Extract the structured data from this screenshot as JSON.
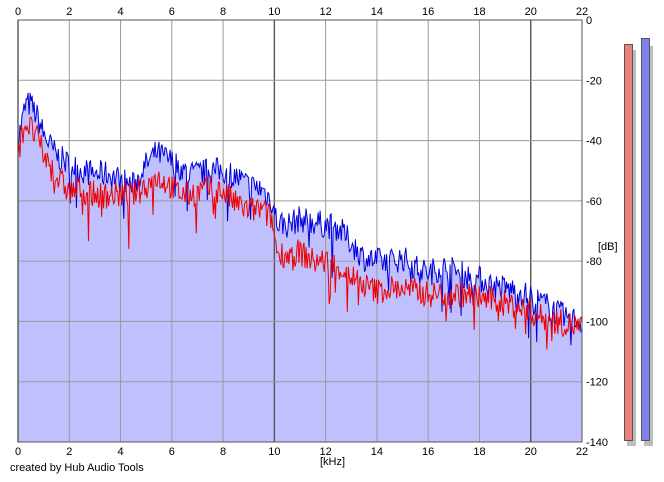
{
  "credit": "created by Hub Audio Tools",
  "chart_data": {
    "type": "area",
    "xlabel": "[kHz]",
    "ylabel": "[dB]",
    "xlim": [
      0,
      22
    ],
    "ylim": [
      -140,
      0
    ],
    "x_ticks": [
      "0",
      "2",
      "4",
      "6",
      "8",
      "10",
      "12",
      "14",
      "16",
      "18",
      "20",
      "22"
    ],
    "y_ticks": [
      "0",
      "-20",
      "-40",
      "-60",
      "-80",
      "-100",
      "-120",
      "-140"
    ],
    "grid": true,
    "colors": {
      "fill": "#c0c0ff",
      "blue": "#0000dd",
      "red": "#ee0000",
      "meter_left": "#f08080",
      "meter_right": "#8080f0"
    },
    "series": [
      {
        "color": "blue",
        "x": [
          0,
          0.3,
          0.5,
          0.8,
          1.0,
          1.5,
          2.0,
          2.5,
          3.0,
          3.5,
          4.0,
          4.5,
          5.0,
          5.4,
          5.8,
          6.2,
          6.6,
          7.0,
          7.5,
          8.0,
          8.5,
          9.0,
          9.5,
          9.9,
          10.1,
          10.5,
          11.0,
          11.5,
          12.0,
          12.5,
          13.0,
          13.5,
          14.0,
          14.5,
          15.0,
          15.5,
          16.0,
          16.5,
          17.0,
          17.5,
          18.0,
          18.5,
          19.0,
          19.5,
          20.0,
          20.5,
          21.0,
          21.5,
          22.0
        ],
        "y": [
          -40,
          -28,
          -28,
          -33,
          -38,
          -45,
          -48,
          -50,
          -51,
          -51,
          -53,
          -55,
          -48,
          -44,
          -46,
          -48,
          -51,
          -51,
          -50,
          -50,
          -52,
          -55,
          -56,
          -60,
          -67,
          -68,
          -66,
          -67,
          -68,
          -69,
          -74,
          -79,
          -80,
          -80,
          -79,
          -82,
          -84,
          -82,
          -83,
          -85,
          -86,
          -88,
          -89,
          -90,
          -92,
          -94,
          -97,
          -99,
          -100
        ]
      },
      {
        "color": "red",
        "x": [
          0,
          0.3,
          0.5,
          0.8,
          1.0,
          1.5,
          2.0,
          2.5,
          3.0,
          3.5,
          4.0,
          4.5,
          5.0,
          5.4,
          5.8,
          6.2,
          6.6,
          7.0,
          7.5,
          8.0,
          8.5,
          9.0,
          9.5,
          9.9,
          10.1,
          10.5,
          11.0,
          11.5,
          12.0,
          12.5,
          13.0,
          13.5,
          14.0,
          14.5,
          15.0,
          15.5,
          16.0,
          16.5,
          17.0,
          17.5,
          18.0,
          18.5,
          19.0,
          19.5,
          20.0,
          20.5,
          21.0,
          21.5,
          22.0
        ],
        "y": [
          -42,
          -34,
          -36,
          -40,
          -45,
          -52,
          -57,
          -56,
          -58,
          -58,
          -58,
          -58,
          -55,
          -52,
          -54,
          -57,
          -58,
          -57,
          -56,
          -57,
          -61,
          -63,
          -63,
          -66,
          -77,
          -78,
          -77,
          -80,
          -80,
          -82,
          -85,
          -88,
          -90,
          -89,
          -89,
          -90,
          -91,
          -91,
          -91,
          -91,
          -92,
          -93,
          -94,
          -95,
          -97,
          -99,
          -100,
          -101,
          -102
        ]
      }
    ],
    "level_meters": [
      {
        "channel": "left",
        "level_db": -8,
        "color": "meter_left"
      },
      {
        "channel": "right",
        "level_db": -6,
        "color": "meter_right"
      }
    ]
  }
}
